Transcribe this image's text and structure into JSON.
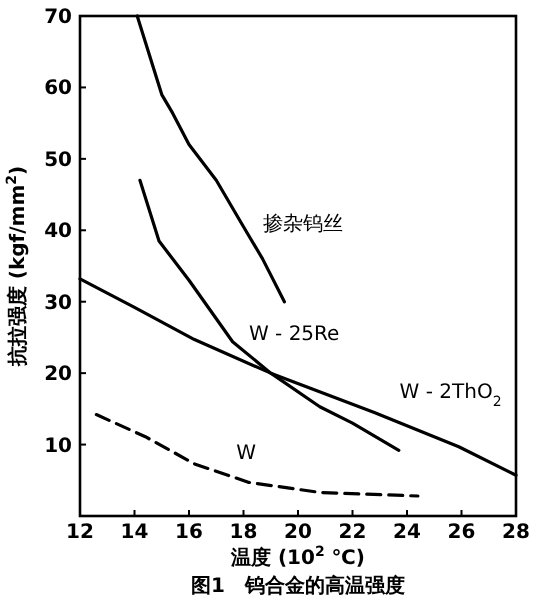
{
  "chart_data": {
    "type": "line",
    "title": "图1　钨合金的高温强度",
    "xlabel": "温度 (10$^{2}$ ℃)",
    "ylabel": "抗拉强度 (kgf/mm$^{2}$)",
    "xlim": [
      12,
      28
    ],
    "xticks": [
      12,
      14,
      16,
      18,
      20,
      22,
      24,
      26,
      28
    ],
    "ylim": [
      0,
      70
    ],
    "yticks": [
      10,
      20,
      30,
      40,
      50,
      60,
      70
    ],
    "grid": false,
    "marker": "none",
    "series": [
      {
        "name": "掺杂钨丝",
        "color": "#000000",
        "line_style": "solid",
        "x": [
          14.1,
          15.0,
          15.4,
          16.0,
          17.0,
          18.0,
          18.7,
          19.5
        ],
        "values": [
          70,
          59,
          56.4,
          52,
          47,
          40.5,
          36,
          30
        ]
      },
      {
        "name": "W - 25Re",
        "color": "#000000",
        "line_style": "solid",
        "x": [
          14.2,
          14.9,
          16.0,
          17.6,
          19.0,
          20.8,
          22.0,
          23.7
        ],
        "values": [
          47,
          38.5,
          33,
          24.4,
          20,
          15.3,
          13,
          9.2
        ]
      },
      {
        "name": "W - 2ThO$_{2}$",
        "color": "#000000",
        "line_style": "solid",
        "x": [
          12.0,
          14.0,
          16.2,
          19.0,
          22.8,
          25.9,
          28.0
        ],
        "values": [
          33.2,
          29.2,
          24.7,
          20,
          14.5,
          9.7,
          5.7
        ]
      },
      {
        "name": "W",
        "color": "#000000",
        "line_style": "dashed",
        "x": [
          12.6,
          14.4,
          16.2,
          18.2,
          20.8,
          24.4
        ],
        "values": [
          14.2,
          11.1,
          7.3,
          4.7,
          3.3,
          2.8
        ]
      }
    ]
  }
}
